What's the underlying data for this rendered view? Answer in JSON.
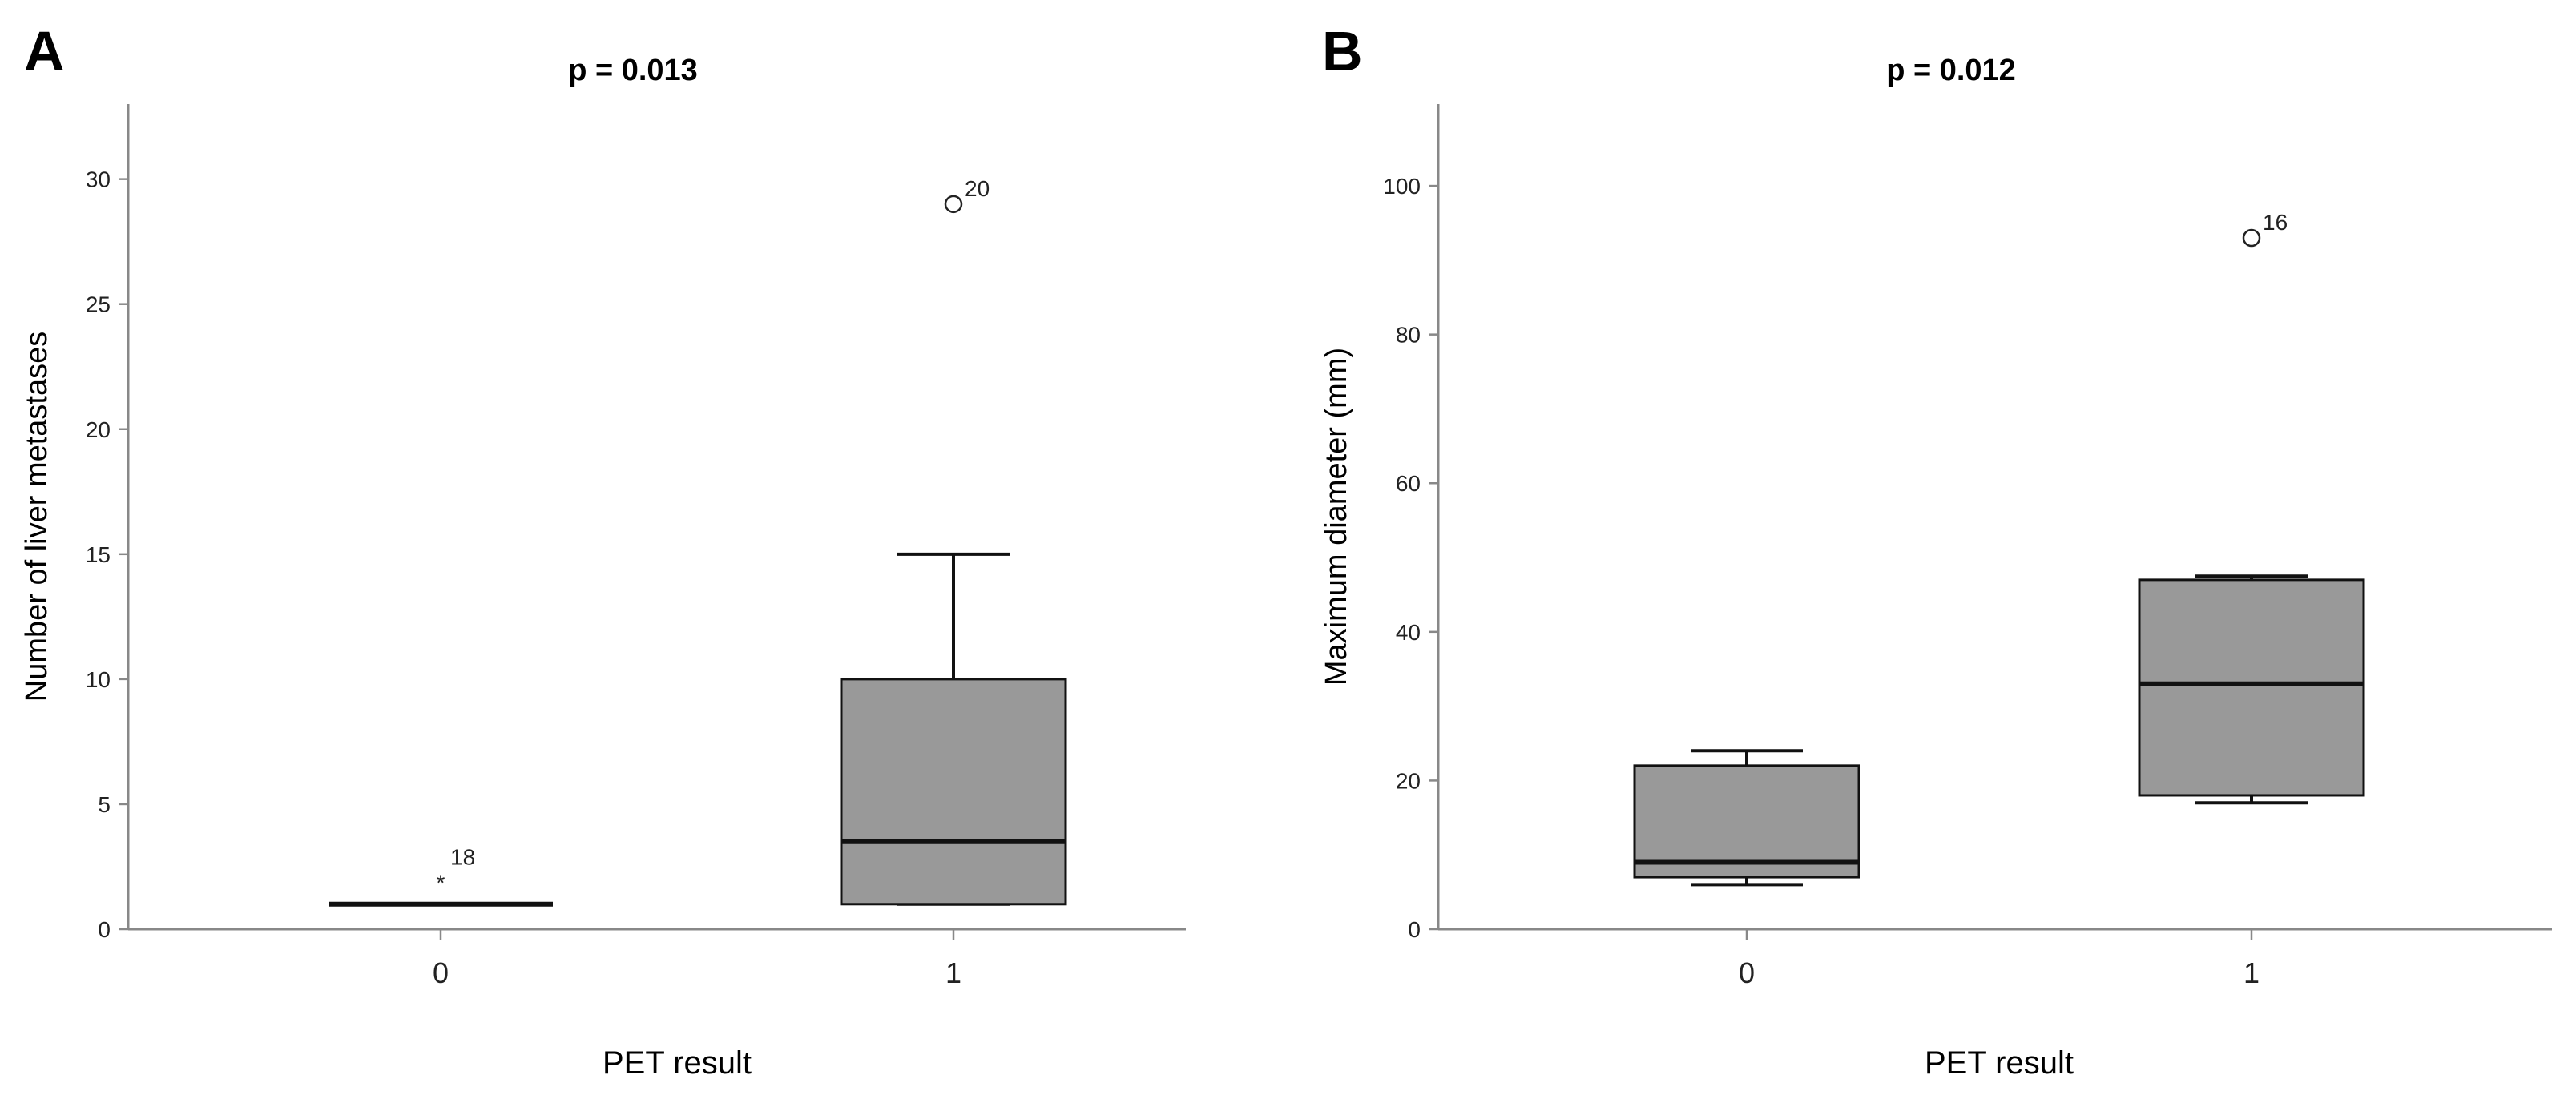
{
  "chart_data": [
    {
      "type": "box",
      "panel_label": "A",
      "title": "p = 0.013",
      "xlabel": "PET result",
      "ylabel": "Number of liver metastases",
      "ylim": [
        0,
        33
      ],
      "yticks": [
        0,
        5,
        10,
        15,
        20,
        25,
        30
      ],
      "categories": [
        "0",
        "1"
      ],
      "boxes": [
        {
          "category": "0",
          "min": 1,
          "q1": 1,
          "median": 1,
          "q3": 1,
          "max": 1,
          "outliers": [
            {
              "value": 2,
              "label": "18",
              "marker": "star"
            }
          ]
        },
        {
          "category": "1",
          "min": 1,
          "q1": 1,
          "median": 3.5,
          "q3": 10,
          "max": 15,
          "outliers": [
            {
              "value": 29,
              "label": "20",
              "marker": "circle"
            }
          ]
        }
      ]
    },
    {
      "type": "box",
      "panel_label": "B",
      "title": "p = 0.012",
      "xlabel": "PET result",
      "ylabel": "Maximum diameter (mm)",
      "ylim": [
        0,
        111
      ],
      "yticks": [
        0,
        20,
        40,
        60,
        80,
        100
      ],
      "categories": [
        "0",
        "1"
      ],
      "boxes": [
        {
          "category": "0",
          "min": 6,
          "q1": 7,
          "median": 9,
          "q3": 22,
          "max": 24,
          "outliers": []
        },
        {
          "category": "1",
          "min": 17,
          "q1": 18,
          "median": 33,
          "q3": 47,
          "max": 47.5,
          "outliers": [
            {
              "value": 93,
              "label": "16",
              "marker": "circle"
            }
          ]
        }
      ]
    }
  ]
}
